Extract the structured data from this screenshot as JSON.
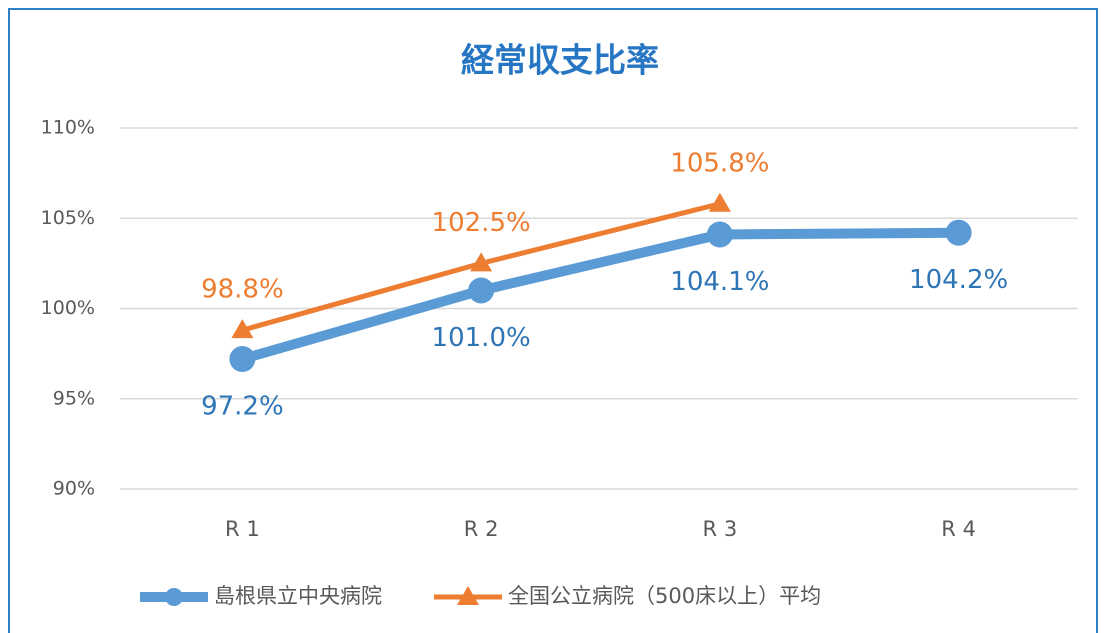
{
  "chart_data": {
    "type": "line",
    "title": "経常収支比率",
    "categories": [
      "R 1",
      "R 2",
      "R 3",
      "R 4"
    ],
    "series": [
      {
        "name": "島根県立中央病院",
        "color": "#5b9bd5",
        "label_color": "#2e75b6",
        "marker": "circle",
        "label_position": "below",
        "values": [
          97.2,
          101.0,
          104.1,
          104.2
        ],
        "value_labels": [
          "97.2%",
          "101.0%",
          "104.1%",
          "104.2%"
        ]
      },
      {
        "name": "全国公立病院（500床以上）平均",
        "color": "#ed7d31",
        "label_color": "#ed7d31",
        "marker": "triangle",
        "label_position": "above",
        "values": [
          98.8,
          102.5,
          105.8,
          null
        ],
        "value_labels": [
          "98.8%",
          "102.5%",
          "105.8%",
          null
        ]
      }
    ],
    "ylim": [
      90,
      110
    ],
    "yticks": [
      {
        "value": 90,
        "label": "90%"
      },
      {
        "value": 95,
        "label": "95%"
      },
      {
        "value": 100,
        "label": "100%"
      },
      {
        "value": 105,
        "label": "105%"
      },
      {
        "value": 110,
        "label": "110%"
      }
    ],
    "grid": true,
    "legend": "bottom"
  }
}
